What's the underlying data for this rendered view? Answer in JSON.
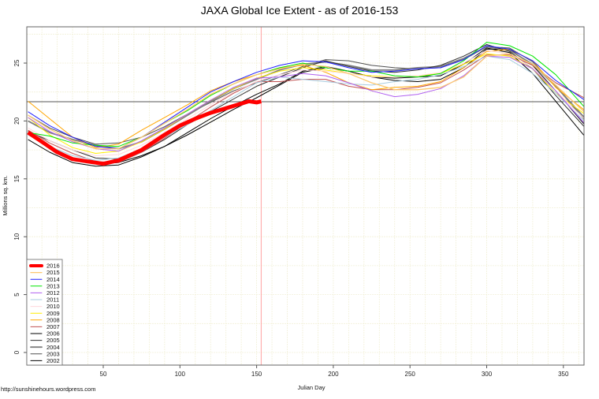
{
  "chart_data": {
    "type": "line",
    "title": "JAXA Global Ice Extent - as of 2016-153",
    "xlabel": "Julian Day",
    "ylabel": "Millions sq. km.",
    "source_note": "http://sunshinehours.wordpress.com",
    "xlim": [
      1,
      364
    ],
    "ylim": [
      -1,
      28
    ],
    "x_ticks": [
      50,
      100,
      150,
      200,
      250,
      300,
      350
    ],
    "y_ticks": [
      0,
      5,
      10,
      15,
      20,
      25
    ],
    "grid": true,
    "legend_position": "bottom-left",
    "reference_hline": 21.66,
    "reference_vline_day": 153,
    "reference_vline_color": "#ffb0b0",
    "days": [
      1,
      15,
      30,
      45,
      60,
      75,
      90,
      105,
      120,
      135,
      150,
      165,
      180,
      195,
      210,
      225,
      240,
      255,
      270,
      285,
      300,
      315,
      330,
      345,
      365
    ],
    "series": [
      {
        "name": "2016",
        "color": "#ff0000",
        "width": 5,
        "days": [
          1,
          10,
          20,
          30,
          40,
          50,
          60,
          75,
          90,
          100,
          110,
          120,
          130,
          140,
          145,
          150,
          153
        ],
        "values": [
          19.0,
          18.2,
          17.3,
          16.7,
          16.5,
          16.3,
          16.6,
          17.5,
          18.8,
          19.6,
          20.2,
          20.7,
          21.1,
          21.5,
          21.7,
          21.6,
          21.7
        ]
      },
      {
        "name": "2015",
        "color": "#fcc870",
        "width": 1.3,
        "values": [
          20.5,
          19.3,
          18.3,
          17.6,
          17.6,
          18.6,
          19.8,
          21.0,
          22.3,
          23.2,
          24.0,
          24.5,
          24.9,
          24.7,
          24.1,
          23.3,
          22.7,
          22.7,
          22.9,
          23.8,
          25.6,
          25.8,
          24.9,
          23.1,
          20.6
        ]
      },
      {
        "name": "2014",
        "color": "#2020ff",
        "width": 1,
        "values": [
          20.8,
          19.6,
          18.6,
          17.8,
          17.6,
          18.6,
          19.9,
          21.2,
          22.5,
          23.4,
          24.2,
          24.8,
          25.2,
          25.1,
          24.6,
          24.2,
          24.3,
          24.5,
          24.6,
          25.3,
          26.5,
          26.2,
          25.2,
          23.5,
          21.7
        ]
      },
      {
        "name": "2013",
        "color": "#00e600",
        "width": 1,
        "values": [
          19.0,
          18.7,
          18.1,
          17.9,
          17.8,
          18.6,
          19.8,
          20.9,
          22.2,
          23.2,
          24.0,
          24.6,
          25.0,
          24.6,
          24.3,
          24.3,
          23.9,
          23.8,
          24.1,
          25.2,
          26.8,
          26.5,
          25.6,
          24.0,
          21.0
        ]
      },
      {
        "name": "2012",
        "color": "#b060f0",
        "width": 1,
        "values": [
          20.3,
          19.1,
          18.2,
          17.6,
          17.4,
          18.3,
          19.4,
          20.6,
          21.8,
          22.9,
          23.7,
          23.8,
          24.1,
          23.9,
          23.3,
          22.6,
          22.1,
          22.3,
          22.8,
          23.9,
          25.6,
          25.5,
          24.5,
          22.6,
          19.6
        ]
      },
      {
        "name": "2011",
        "color": "#a8cce0",
        "width": 1,
        "values": [
          18.8,
          17.8,
          17.0,
          16.6,
          16.8,
          17.6,
          18.6,
          19.7,
          20.9,
          22.1,
          23.3,
          23.8,
          23.6,
          23.4,
          23.2,
          23.1,
          23.4,
          23.6,
          24.0,
          24.7,
          25.6,
          25.3,
          24.1,
          22.4,
          19.8
        ]
      },
      {
        "name": "2010",
        "color": "#ffd8dc",
        "width": 1,
        "values": [
          19.4,
          18.3,
          17.5,
          17.0,
          17.1,
          17.9,
          19.0,
          20.2,
          21.4,
          22.5,
          23.4,
          24.0,
          24.4,
          24.3,
          24.1,
          23.8,
          23.8,
          23.9,
          24.2,
          25.0,
          26.1,
          25.8,
          24.6,
          22.6,
          20.0
        ]
      },
      {
        "name": "2009",
        "color": "#ffee00",
        "width": 1,
        "values": [
          20.3,
          18.8,
          17.7,
          17.2,
          17.4,
          18.2,
          19.3,
          20.6,
          21.8,
          22.8,
          23.7,
          24.3,
          24.6,
          24.4,
          24.1,
          23.9,
          23.8,
          23.9,
          24.1,
          24.9,
          25.8,
          25.6,
          24.5,
          22.4,
          20.5
        ]
      },
      {
        "name": "2008",
        "color": "#ffa500",
        "width": 1,
        "values": [
          21.7,
          20.2,
          18.6,
          17.7,
          18.0,
          19.2,
          20.3,
          21.4,
          22.6,
          23.4,
          24.0,
          24.6,
          24.8,
          24.2,
          23.3,
          22.7,
          22.9,
          23.0,
          23.4,
          24.6,
          26.0,
          26.2,
          25.2,
          22.9,
          20.8
        ]
      },
      {
        "name": "2007",
        "color": "#c05050",
        "width": 1,
        "values": [
          19.2,
          18.1,
          17.2,
          16.5,
          16.4,
          17.3,
          18.5,
          19.9,
          21.2,
          22.4,
          23.4,
          23.4,
          23.6,
          23.6,
          23.0,
          22.7,
          22.7,
          22.9,
          23.3,
          24.4,
          25.7,
          25.7,
          24.8,
          23.3,
          21.9
        ]
      },
      {
        "name": "2006",
        "color": "#000000",
        "width": 1,
        "values": [
          18.4,
          17.3,
          16.4,
          16.1,
          16.2,
          16.9,
          17.8,
          18.8,
          19.9,
          21.0,
          22.0,
          23.1,
          24.2,
          24.6,
          24.3,
          23.8,
          23.7,
          23.8,
          23.9,
          24.9,
          26.3,
          25.9,
          24.1,
          21.7,
          18.5
        ]
      },
      {
        "name": "2005",
        "color": "#303030",
        "width": 1,
        "values": [
          19.1,
          18.3,
          17.5,
          16.8,
          16.7,
          17.3,
          18.4,
          19.7,
          20.8,
          21.9,
          23.0,
          23.8,
          24.6,
          25.2,
          24.7,
          24.3,
          24.2,
          24.4,
          24.8,
          25.6,
          26.6,
          26.0,
          24.5,
          22.2,
          19.3
        ]
      },
      {
        "name": "2004",
        "color": "#808080",
        "width": 1.8,
        "values": [
          20.0,
          19.0,
          18.4,
          17.9,
          17.6,
          18.2,
          19.3,
          20.5,
          21.7,
          22.8,
          23.6,
          24.4,
          24.9,
          25.1,
          24.8,
          24.4,
          24.4,
          24.6,
          24.7,
          25.4,
          26.4,
          26.1,
          24.9,
          23.0,
          20.1
        ]
      },
      {
        "name": "2003",
        "color": "#505050",
        "width": 1,
        "values": [
          20.5,
          19.4,
          18.6,
          18.0,
          18.1,
          18.6,
          19.5,
          20.6,
          21.6,
          22.6,
          23.3,
          24.0,
          24.7,
          25.3,
          25.2,
          24.8,
          24.6,
          24.5,
          24.6,
          25.3,
          26.4,
          26.3,
          25.1,
          23.0,
          19.9
        ]
      },
      {
        "name": "2002",
        "color": "#000000",
        "width": 1,
        "values": [
          19.0,
          17.8,
          16.8,
          16.3,
          16.4,
          17.0,
          17.8,
          19.0,
          20.2,
          21.3,
          22.3,
          23.2,
          24.3,
          24.7,
          24.3,
          23.8,
          23.5,
          23.4,
          23.6,
          24.6,
          26.2,
          26.2,
          24.8,
          22.6,
          19.5
        ]
      }
    ]
  }
}
